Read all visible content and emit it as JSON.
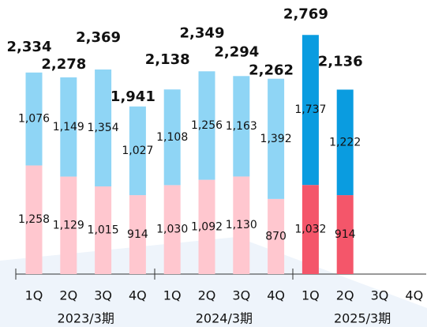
{
  "chart_data": {
    "type": "stacked_bar",
    "categories": [
      "1Q",
      "2Q",
      "3Q",
      "4Q",
      "1Q",
      "2Q",
      "3Q",
      "4Q",
      "1Q",
      "2Q",
      "3Q",
      "4Q"
    ],
    "groups": [
      "2023/3期",
      "2024/3期",
      "2025/3期"
    ],
    "series": [
      {
        "values": [
          1258,
          1129,
          1015,
          914,
          1030,
          1092,
          1130,
          870,
          1032,
          914,
          null,
          null
        ],
        "value_labels": [
          "1,258",
          "1,129",
          "1,015",
          "914",
          "1,030",
          "1,092",
          "1,130",
          "870",
          "1,032",
          "914",
          null,
          null
        ],
        "colors": [
          "#ffc7cf",
          "#ffc7cf",
          "#ffc7cf",
          "#ffc7cf",
          "#ffc7cf",
          "#ffc7cf",
          "#ffc7cf",
          "#ffc7cf",
          "#f4566a",
          "#f4566a",
          "#f4566a",
          "#f4566a"
        ]
      },
      {
        "values": [
          1076,
          1149,
          1354,
          1027,
          1108,
          1256,
          1163,
          1392,
          1737,
          1222,
          null,
          null
        ],
        "value_labels": [
          "1,076",
          "1,149",
          "1,354",
          "1,027",
          "1,108",
          "1,256",
          "1,163",
          "1,392",
          "1,737",
          "1,222",
          null,
          null
        ],
        "colors": [
          "#8fd5f5",
          "#8fd5f5",
          "#8fd5f5",
          "#8fd5f5",
          "#8fd5f5",
          "#8fd5f5",
          "#8fd5f5",
          "#8fd5f5",
          "#0a9ce0",
          "#0a9ce0",
          "#0a9ce0",
          "#0a9ce0"
        ]
      }
    ],
    "totals": [
      2334,
      2278,
      2369,
      1941,
      2138,
      2349,
      2294,
      2262,
      2769,
      2136,
      null,
      null
    ],
    "total_labels": [
      "2,334",
      "2,278",
      "2,369",
      "1,941",
      "2,138",
      "2,349",
      "2,294",
      "2,262",
      "2,769",
      "2,136",
      null,
      null
    ],
    "ylim": [
      0,
      3000
    ]
  }
}
